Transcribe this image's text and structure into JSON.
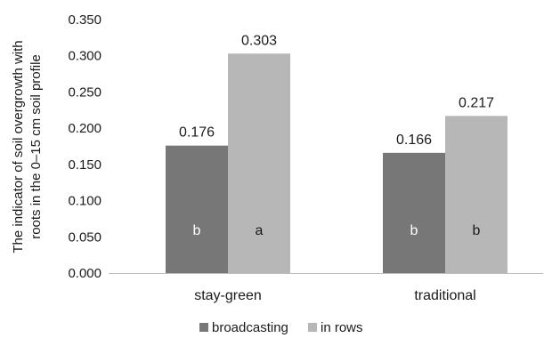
{
  "chart_data": {
    "type": "bar",
    "categories": [
      "stay-green",
      "traditional"
    ],
    "series": [
      {
        "name": "broadcasting",
        "color": "#777777",
        "values": [
          0.176,
          0.166
        ],
        "value_labels": [
          "0.176",
          "0.166"
        ],
        "significance_letters": [
          "b",
          "b"
        ],
        "letter_color": "#ffffff"
      },
      {
        "name": "in rows",
        "color": "#b7b7b7",
        "values": [
          0.303,
          0.217
        ],
        "value_labels": [
          "0.303",
          "0.217"
        ],
        "significance_letters": [
          "a",
          "b"
        ],
        "letter_color": "#1a1a1a"
      }
    ],
    "ylabel_lines": [
      "The indicator of soil overgrowth with",
      "roots in the 0–15 cm soil profile"
    ],
    "xlabel": "",
    "ylim": [
      0,
      0.35
    ],
    "yticks": [
      0.0,
      0.05,
      0.1,
      0.15,
      0.2,
      0.25,
      0.3,
      0.35
    ],
    "ytick_labels": [
      "0.000",
      "0.050",
      "0.100",
      "0.150",
      "0.200",
      "0.250",
      "0.300",
      "0.350"
    ],
    "grid": false,
    "legend_position": "bottom-center"
  }
}
